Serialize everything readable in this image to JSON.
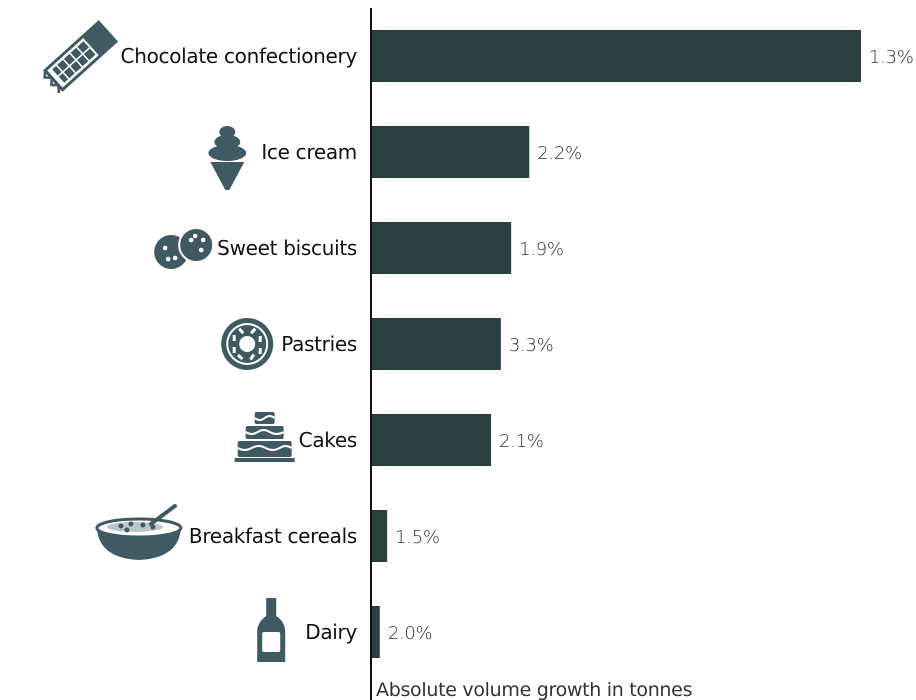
{
  "chart_data": {
    "type": "bar",
    "orientation": "horizontal",
    "categories": [
      "Chocolate confectionery",
      "Ice cream",
      "Sweet biscuits",
      "Pastries",
      "Cakes",
      "Breakfast cereals",
      "Dairy"
    ],
    "values": [
      100,
      32.3,
      28.6,
      26.5,
      24.5,
      3.3,
      1.8
    ],
    "data_labels": [
      "1.3%",
      "2.2%",
      "1.9%",
      "3.3%",
      "2.1%",
      "1.5%",
      "2.0%"
    ],
    "icons": [
      "chocolate-bar-icon",
      "ice-cream-icon",
      "biscuits-icon",
      "donut-icon",
      "cake-icon",
      "cereal-bowl-icon",
      "milk-bottle-icon"
    ],
    "xlabel": "Absolute volume growth in tonnes",
    "ylabel": "",
    "xlim": [
      0,
      100
    ],
    "grid": false,
    "legend": "none",
    "colors": {
      "bar": "#2c403f",
      "icon": "#3f5a63",
      "axis": "#111111"
    }
  }
}
